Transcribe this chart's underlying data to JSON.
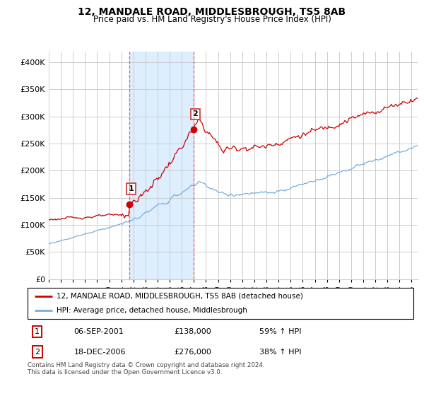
{
  "title": "12, MANDALE ROAD, MIDDLESBROUGH, TS5 8AB",
  "subtitle": "Price paid vs. HM Land Registry's House Price Index (HPI)",
  "ylim": [
    0,
    420000
  ],
  "yticks": [
    0,
    50000,
    100000,
    150000,
    200000,
    250000,
    300000,
    350000,
    400000
  ],
  "xlim_start": 1995.0,
  "xlim_end": 2025.5,
  "sale1_date": 2001.67,
  "sale1_price": 138000,
  "sale1_label": "1",
  "sale2_date": 2006.96,
  "sale2_price": 276000,
  "sale2_label": "2",
  "red_line_color": "#cc0000",
  "blue_line_color": "#7aaddb",
  "highlight_bg_color": "#ddeeff",
  "dashed_color": "#dd4444",
  "legend_label_red": "12, MANDALE ROAD, MIDDLESBROUGH, TS5 8AB (detached house)",
  "legend_label_blue": "HPI: Average price, detached house, Middlesbrough",
  "table_rows": [
    {
      "num": "1",
      "date": "06-SEP-2001",
      "price": "£138,000",
      "hpi": "59% ↑ HPI"
    },
    {
      "num": "2",
      "date": "18-DEC-2006",
      "price": "£276,000",
      "hpi": "38% ↑ HPI"
    }
  ],
  "footer": "Contains HM Land Registry data © Crown copyright and database right 2024.\nThis data is licensed under the Open Government Licence v3.0.",
  "grid_color": "#cccccc"
}
